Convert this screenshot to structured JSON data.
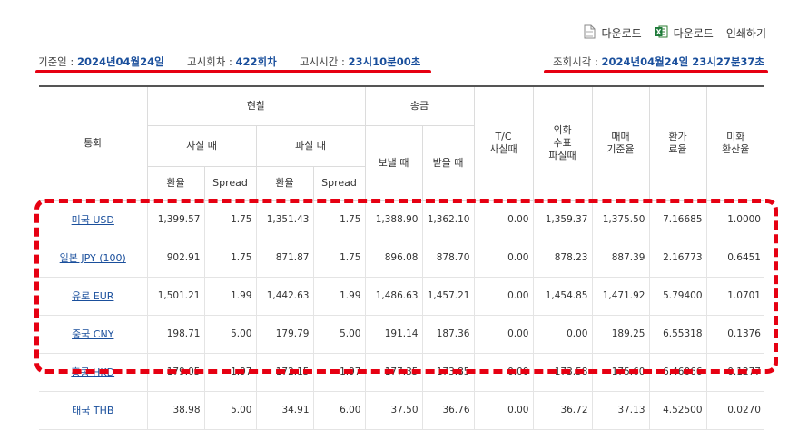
{
  "toolbar": {
    "download1": "다운로드",
    "download2": "다운로드",
    "print": "인쇄하기"
  },
  "info": {
    "base_date_label": "기준일 :",
    "base_date": "2024년04월24일",
    "round_label": "고시회차 :",
    "round": "422회차",
    "notice_time_label": "고시시간 :",
    "notice_time": "23시10분00초",
    "query_time_label": "조회시각 :",
    "query_time": "2024년04월24일 23시27분37초"
  },
  "table": {
    "headers": {
      "currency": "통화",
      "cash": "현찰",
      "remit": "송금",
      "tc": "T/C\n사실때",
      "foreign_check": "외화\n수표\n파실때",
      "base_rate": "매매\n기준율",
      "exchange_rate": "환가\n료율",
      "usd_rate": "미화\n환산율",
      "buy": "사실 때",
      "sell": "파실 때",
      "send": "보낼 때",
      "receive": "받을 때",
      "rate": "환율",
      "spread": "Spread"
    },
    "rows": [
      {
        "currency": "미국 USD",
        "c": [
          "1,399.57",
          "1.75",
          "1,351.43",
          "1.75",
          "1,388.90",
          "1,362.10",
          "0.00",
          "1,359.37",
          "1,375.50",
          "7.16685",
          "1.0000"
        ]
      },
      {
        "currency": "일본 JPY (100)",
        "c": [
          "902.91",
          "1.75",
          "871.87",
          "1.75",
          "896.08",
          "878.70",
          "0.00",
          "878.23",
          "887.39",
          "2.16773",
          "0.6451"
        ]
      },
      {
        "currency": "유로 EUR",
        "c": [
          "1,501.21",
          "1.99",
          "1,442.63",
          "1.99",
          "1,486.63",
          "1,457.21",
          "0.00",
          "1,454.85",
          "1,471.92",
          "5.79400",
          "1.0701"
        ]
      },
      {
        "currency": "중국 CNY",
        "c": [
          "198.71",
          "5.00",
          "179.79",
          "5.00",
          "191.14",
          "187.36",
          "0.00",
          "0.00",
          "189.25",
          "6.55318",
          "0.1376"
        ]
      },
      {
        "currency": "홍콩 HKD",
        "c": [
          "179.05",
          "1.97",
          "172.15",
          "1.97",
          "177.35",
          "173.85",
          "0.00",
          "173.58",
          "175.60",
          "6.46066",
          "0.1277"
        ]
      },
      {
        "currency": "태국 THB",
        "c": [
          "38.98",
          "5.00",
          "34.91",
          "6.00",
          "37.50",
          "36.76",
          "0.00",
          "36.72",
          "37.13",
          "4.52500",
          "0.0270"
        ]
      }
    ]
  },
  "colors": {
    "accent": "#1a4f9c",
    "highlight": "#e60012"
  },
  "icons": {
    "download1": "document-icon",
    "download2": "excel-icon"
  }
}
